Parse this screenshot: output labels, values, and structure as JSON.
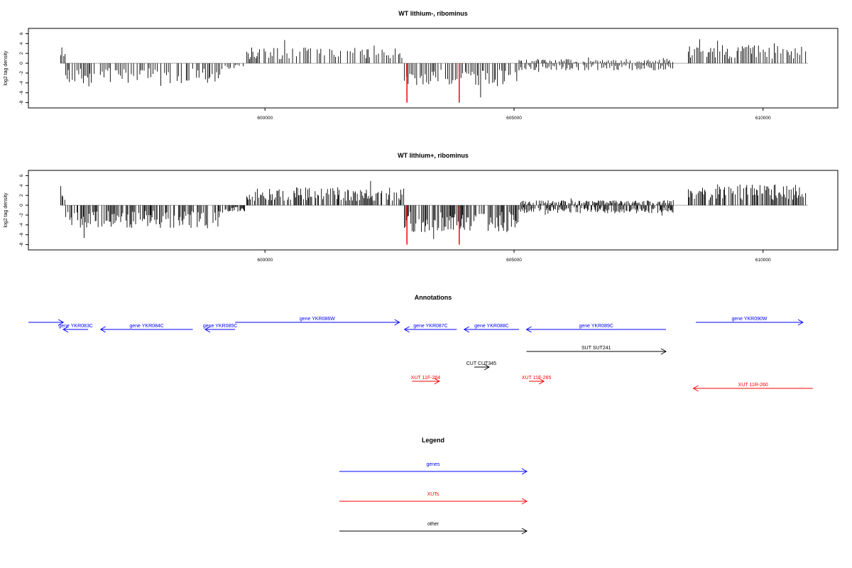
{
  "colors": {
    "gene": "#0000ff",
    "xut": "#ff0000",
    "other": "#000000",
    "highlight": "#ff0000",
    "bars": "#000000",
    "baseline": "#aaaaaa"
  },
  "panels": [
    {
      "title": "WT lithium-, ribominus",
      "ylabel": "log2 tag density",
      "yticks": [
        6,
        4,
        2,
        0,
        -2,
        -4,
        -6,
        -8
      ],
      "ylim": [
        -8.5,
        6.5
      ],
      "xlim": [
        595250,
        611500
      ],
      "xticks": [
        600000,
        605000,
        610000
      ],
      "xtick_labels": [
        "600000",
        "605000",
        "610000"
      ],
      "highlights": [
        {
          "x": 602850,
          "value": -8
        },
        {
          "x": 603900,
          "value": -8
        }
      ],
      "seed": 11,
      "amp": 1.0,
      "density": 0.55
    },
    {
      "title": "WT lithium+, ribominus",
      "ylabel": "log2 tag density",
      "yticks": [
        6,
        4,
        2,
        0,
        -2,
        -4,
        -6,
        -8
      ],
      "ylim": [
        -8.5,
        6.5
      ],
      "xlim": [
        595250,
        611500
      ],
      "xticks": [
        600000,
        605000,
        610000
      ],
      "xtick_labels": [
        "600000",
        "605000",
        "610000"
      ],
      "highlights": [
        {
          "x": 602850,
          "value": -8
        },
        {
          "x": 603900,
          "value": -8
        }
      ],
      "seed": 29,
      "amp": 1.15,
      "density": 0.9
    }
  ],
  "chart_data": {
    "type": "bar",
    "description_of_regions": [
      {
        "start": 595900,
        "end": 596000,
        "sign": 1,
        "mean": 2.5
      },
      {
        "start": 596000,
        "end": 599200,
        "sign": -1,
        "mean": 2.8
      },
      {
        "start": 599200,
        "end": 599600,
        "sign": -1,
        "mean": 0.8
      },
      {
        "start": 599600,
        "end": 602800,
        "sign": 1,
        "mean": 2.2
      },
      {
        "start": 602800,
        "end": 605100,
        "sign": -1,
        "mean": 3.3
      },
      {
        "start": 605100,
        "end": 608200,
        "sign": -1,
        "mean": 1.0
      },
      {
        "start": 605100,
        "end": 608200,
        "sign": 1,
        "mean": 0.6
      },
      {
        "start": 608500,
        "end": 610900,
        "sign": 1,
        "mean": 2.6
      }
    ]
  },
  "annotations": {
    "title": "Annotations",
    "xlim": [
      595250,
      611500
    ],
    "features": [
      {
        "label": "",
        "start": 595250,
        "end": 595950,
        "strand": "+",
        "kind": "gene",
        "row": 0
      },
      {
        "label": "gene YKR083C",
        "start": 595950,
        "end": 596450,
        "strand": "-",
        "kind": "gene",
        "row": 1
      },
      {
        "label": "gene YKR084C",
        "start": 596700,
        "end": 598550,
        "strand": "-",
        "kind": "gene",
        "row": 1
      },
      {
        "label": "gene YKR085C",
        "start": 598800,
        "end": 599400,
        "strand": "-",
        "kind": "gene",
        "row": 1
      },
      {
        "label": "gene YKR086W",
        "start": 599400,
        "end": 602700,
        "strand": "+",
        "kind": "gene",
        "row": 0
      },
      {
        "label": "gene YKR087C",
        "start": 602800,
        "end": 603850,
        "strand": "-",
        "kind": "gene",
        "row": 1
      },
      {
        "label": "gene YKR088C",
        "start": 604000,
        "end": 605100,
        "strand": "-",
        "kind": "gene",
        "row": 1
      },
      {
        "label": "gene YKR089C",
        "start": 605250,
        "end": 608050,
        "strand": "-",
        "kind": "gene",
        "row": 1
      },
      {
        "label": "gene YKR090W",
        "start": 608650,
        "end": 610800,
        "strand": "+",
        "kind": "gene",
        "row": 0
      },
      {
        "label": "SUT SUT241",
        "start": 605250,
        "end": 608050,
        "strand": "+",
        "kind": "other",
        "row": 2
      },
      {
        "label": "CUT CUT345",
        "start": 604200,
        "end": 604500,
        "strand": "+",
        "kind": "other",
        "row": 3
      },
      {
        "label": "XUT 11F-264",
        "start": 602950,
        "end": 603500,
        "strand": "+",
        "kind": "xut",
        "row": 4
      },
      {
        "label": "XUT 11F-265",
        "start": 605300,
        "end": 605600,
        "strand": "+",
        "kind": "xut",
        "row": 4
      },
      {
        "label": "XUT 11R-260",
        "start": 608600,
        "end": 611000,
        "strand": "-",
        "kind": "xut",
        "row": 5
      }
    ]
  },
  "legend": {
    "title": "Legend",
    "items": [
      {
        "label": "genes",
        "kind": "gene"
      },
      {
        "label": "XUTs",
        "kind": "xut"
      },
      {
        "label": "other",
        "kind": "other"
      }
    ]
  }
}
